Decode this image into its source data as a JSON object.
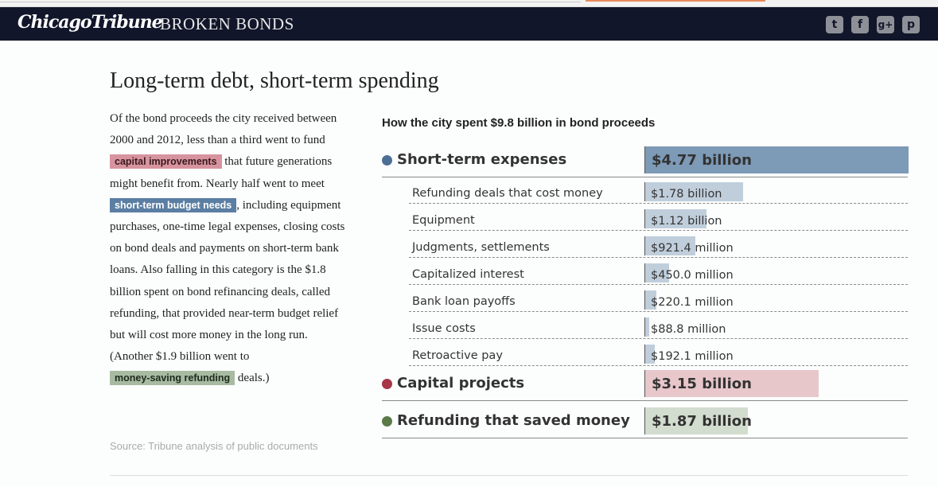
{
  "header": {
    "logo_text": "ChicagoTribune",
    "section_title": "BROKEN BONDS",
    "social": [
      {
        "name": "twitter",
        "glyph": "t"
      },
      {
        "name": "facebook",
        "glyph": "f"
      },
      {
        "name": "google-plus",
        "glyph": "g+"
      },
      {
        "name": "pinterest",
        "glyph": "p"
      }
    ]
  },
  "headline": "Long-term debt, short-term spending",
  "story": {
    "p1": "Of the bond proceeds the city received between 2000 and 2012, less than a third went to fund ",
    "h_capital": "capital improvements",
    "p2": " that future generations might benefit from. Nearly half went to meet ",
    "h_short": "short-term budget needs",
    "p3": ", including equipment purchases, one-time legal expenses, closing costs on bond deals and payments on short-term bank loans. Also falling in this category is the $1.8 billion spent on bond refinancing deals, called refunding, that provided near-term budget relief but will cost more money in the long run. (Another $1.9 billion went to ",
    "h_refund": "money-saving refunding",
    "p4": " deals.)"
  },
  "source": "Source: Tribune analysis of public documents",
  "colors": {
    "short_term": "#4d6f95",
    "short_term_bar": "#7d9ab7",
    "sub_bar": "#c0cedc",
    "capital": "#a83548",
    "capital_bar": "#e8c7cb",
    "refunding": "#5b7a48",
    "refunding_bar": "#d3ddcf"
  },
  "chart_data": {
    "type": "bar",
    "title": "How the city spent $9.8 billion in bond proceeds",
    "categories": [
      {
        "name": "Short-term expenses",
        "value": 4.77,
        "unit": "billion",
        "label": "$4.77 billion",
        "color": "#4d6f95",
        "bar_color": "#7d9ab7",
        "items": [
          {
            "name": "Refunding deals that cost money",
            "value": 1.78,
            "label": "$1.78 billion"
          },
          {
            "name": "Equipment",
            "value": 1.12,
            "label": "$1.12 billion"
          },
          {
            "name": "Judgments, settlements",
            "value": 0.9214,
            "label": "$921.4 million"
          },
          {
            "name": "Capitalized interest",
            "value": 0.45,
            "label": "$450.0 million"
          },
          {
            "name": "Bank loan payoffs",
            "value": 0.2201,
            "label": "$220.1 million"
          },
          {
            "name": "Issue costs",
            "value": 0.0888,
            "label": "$88.8 million"
          },
          {
            "name": "Retroactive pay",
            "value": 0.1921,
            "label": "$192.1 million"
          }
        ]
      },
      {
        "name": "Capital projects",
        "value": 3.15,
        "unit": "billion",
        "label": "$3.15 billion",
        "color": "#a83548",
        "bar_color": "#e8c7cb",
        "items": []
      },
      {
        "name": "Refunding that saved money",
        "value": 1.87,
        "unit": "billion",
        "label": "$1.87 billion",
        "color": "#5b7a48",
        "bar_color": "#d3ddcf",
        "items": []
      }
    ]
  }
}
